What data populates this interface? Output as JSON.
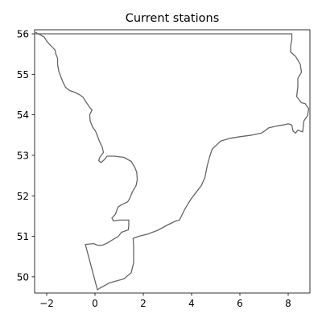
{
  "title": "Current stations",
  "colors": {
    "coastline": "#666666",
    "frame": "#000000",
    "background": "#ffffff"
  },
  "map": {
    "projection": "PlateCarree",
    "extent": {
      "lon_min": -2.5,
      "lon_max": 8.9,
      "lat_min": 49.6,
      "lat_max": 56.1
    },
    "x_ticks": [
      {
        "value": -2,
        "label": "−2"
      },
      {
        "value": 0,
        "label": "0"
      },
      {
        "value": 2,
        "label": "2"
      },
      {
        "value": 4,
        "label": "4"
      },
      {
        "value": 6,
        "label": "6"
      },
      {
        "value": 8,
        "label": "8"
      }
    ],
    "y_ticks": [
      {
        "value": 50,
        "label": "50"
      },
      {
        "value": 51,
        "label": "51"
      },
      {
        "value": 52,
        "label": "52"
      },
      {
        "value": 53,
        "label": "53"
      },
      {
        "value": 54,
        "label": "54"
      },
      {
        "value": 55,
        "label": "55"
      },
      {
        "value": 56,
        "label": "56"
      }
    ],
    "stations": [],
    "coastline": [
      [
        -2.45,
        56.03
      ],
      [
        -2.25,
        55.97
      ],
      [
        -2.1,
        55.92
      ],
      [
        -2.0,
        55.82
      ],
      [
        -1.85,
        55.72
      ],
      [
        -1.75,
        55.66
      ],
      [
        -1.65,
        55.6
      ],
      [
        -1.62,
        55.5
      ],
      [
        -1.55,
        55.4
      ],
      [
        -1.55,
        55.25
      ],
      [
        -1.5,
        55.08
      ],
      [
        -1.42,
        54.95
      ],
      [
        -1.32,
        54.8
      ],
      [
        -1.22,
        54.68
      ],
      [
        -1.05,
        54.6
      ],
      [
        -0.85,
        54.56
      ],
      [
        -0.65,
        54.5
      ],
      [
        -0.5,
        54.44
      ],
      [
        -0.35,
        54.3
      ],
      [
        -0.2,
        54.17
      ],
      [
        -0.12,
        54.12
      ],
      [
        -0.22,
        54.0
      ],
      [
        -0.2,
        53.85
      ],
      [
        -0.1,
        53.7
      ],
      [
        0.02,
        53.6
      ],
      [
        0.1,
        53.48
      ],
      [
        0.18,
        53.35
      ],
      [
        0.3,
        53.2
      ],
      [
        0.35,
        53.07
      ],
      [
        0.2,
        52.95
      ],
      [
        0.15,
        52.87
      ],
      [
        0.25,
        52.82
      ],
      [
        0.4,
        52.9
      ],
      [
        0.5,
        52.98
      ],
      [
        0.8,
        52.98
      ],
      [
        1.2,
        52.95
      ],
      [
        1.5,
        52.85
      ],
      [
        1.65,
        52.7
      ],
      [
        1.73,
        52.58
      ],
      [
        1.75,
        52.4
      ],
      [
        1.7,
        52.25
      ],
      [
        1.55,
        52.1
      ],
      [
        1.45,
        51.95
      ],
      [
        1.35,
        51.85
      ],
      [
        1.1,
        51.78
      ],
      [
        0.95,
        51.72
      ],
      [
        0.85,
        51.55
      ],
      [
        0.7,
        51.45
      ],
      [
        0.77,
        51.38
      ],
      [
        1.0,
        51.4
      ],
      [
        1.4,
        51.4
      ],
      [
        1.4,
        51.28
      ],
      [
        1.38,
        51.16
      ],
      [
        1.1,
        51.1
      ],
      [
        0.95,
        50.99
      ],
      [
        0.8,
        50.94
      ],
      [
        0.5,
        50.83
      ],
      [
        0.3,
        50.78
      ],
      [
        0.1,
        50.78
      ],
      [
        -0.05,
        50.82
      ],
      [
        -0.4,
        50.8
      ],
      [
        0.1,
        49.68
      ],
      [
        0.2,
        49.72
      ],
      [
        0.6,
        49.85
      ],
      [
        1.2,
        49.95
      ],
      [
        1.5,
        50.1
      ],
      [
        1.6,
        50.35
      ],
      [
        1.6,
        50.75
      ],
      [
        1.58,
        50.95
      ],
      [
        1.8,
        51.0
      ],
      [
        2.2,
        51.06
      ],
      [
        2.6,
        51.15
      ],
      [
        3.0,
        51.28
      ],
      [
        3.35,
        51.38
      ],
      [
        3.5,
        51.4
      ],
      [
        3.7,
        51.65
      ],
      [
        3.95,
        51.9
      ],
      [
        4.05,
        51.98
      ],
      [
        4.4,
        52.25
      ],
      [
        4.55,
        52.45
      ],
      [
        4.65,
        52.75
      ],
      [
        4.75,
        52.97
      ],
      [
        4.85,
        53.15
      ],
      [
        5.2,
        53.35
      ],
      [
        5.6,
        53.42
      ],
      [
        6.0,
        53.46
      ],
      [
        6.5,
        53.5
      ],
      [
        6.9,
        53.55
      ],
      [
        7.2,
        53.68
      ],
      [
        7.5,
        53.72
      ],
      [
        7.8,
        53.75
      ],
      [
        8.0,
        53.78
      ],
      [
        8.15,
        53.75
      ],
      [
        8.2,
        53.6
      ],
      [
        8.3,
        53.55
      ],
      [
        8.4,
        53.62
      ],
      [
        8.6,
        53.58
      ],
      [
        8.65,
        53.85
      ],
      [
        8.8,
        53.98
      ],
      [
        8.85,
        54.15
      ],
      [
        8.7,
        54.28
      ],
      [
        8.55,
        54.3
      ],
      [
        8.35,
        54.45
      ],
      [
        8.4,
        54.7
      ],
      [
        8.4,
        54.9
      ],
      [
        8.55,
        55.05
      ],
      [
        8.5,
        55.25
      ],
      [
        8.3,
        55.45
      ],
      [
        8.1,
        55.55
      ],
      [
        8.1,
        55.7
      ],
      [
        8.15,
        55.85
      ],
      [
        8.15,
        56.0
      ],
      [
        -2.45,
        56.0
      ]
    ]
  }
}
